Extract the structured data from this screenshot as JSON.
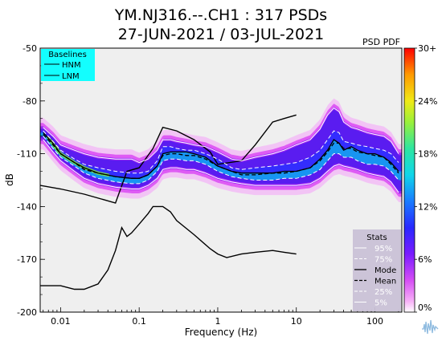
{
  "chart_data": {
    "type": "heatmap",
    "title": [
      "YM.NJ316.--.CH1 : 317 PSDs",
      "27-JUN-2021 / 03-JUL-2021"
    ],
    "xlabel": "Frequency (Hz)",
    "ylabel": "dB",
    "xscale": "log",
    "xlim": [
      0.0055,
      220
    ],
    "ylim": [
      -200,
      -50
    ],
    "xticks": [
      0.01,
      0.1,
      1,
      10,
      100
    ],
    "xtick_labels": [
      "0.01",
      "0.1",
      "1",
      "10",
      "100"
    ],
    "yticks": [
      -50,
      -80,
      -110,
      -140,
      -170,
      -200
    ],
    "ytick_labels": [
      "-50",
      "-80",
      "-110",
      "-140",
      "-170",
      "-200"
    ],
    "grid": false,
    "colorbar": {
      "title": "PSD PDF",
      "ticks": [
        "0%",
        "6%",
        "12%",
        "18%",
        "24%",
        "30+"
      ],
      "values": [
        0,
        6,
        12,
        18,
        24,
        30
      ]
    },
    "baselines": {
      "title": "Baselines",
      "placement": "top-left",
      "entries": [
        "HNM",
        "LNM"
      ],
      "series": [
        {
          "name": "HNM",
          "x": [
            0.0055,
            0.01,
            0.02,
            0.05,
            0.07,
            0.1,
            0.15,
            0.2,
            0.3,
            0.5,
            0.8,
            1,
            2,
            3,
            5,
            7,
            10
          ],
          "y": [
            -128,
            -130,
            -133,
            -138,
            -120,
            -118,
            -107,
            -95,
            -97,
            -102,
            -109,
            -116,
            -114,
            -105,
            -92,
            -90,
            -88
          ]
        },
        {
          "name": "LNM",
          "x": [
            0.0055,
            0.01,
            0.015,
            0.02,
            0.03,
            0.04,
            0.05,
            0.06,
            0.07,
            0.08,
            0.1,
            0.13,
            0.15,
            0.2,
            0.25,
            0.3,
            0.5,
            0.8,
            1,
            1.3,
            2,
            3,
            5,
            7,
            10
          ],
          "y": [
            -185,
            -185,
            -187,
            -187,
            -184,
            -176,
            -165,
            -152,
            -157,
            -155,
            -150,
            -144,
            -140,
            -140,
            -143,
            -148,
            -156,
            -164,
            -167,
            -169,
            -167,
            -166,
            -165,
            -166,
            -167
          ]
        }
      ]
    },
    "stats": {
      "title": "Stats",
      "placement": "bottom-right",
      "entries": [
        "95%",
        "75%",
        "Mode",
        "Mean",
        "25%",
        "5%"
      ],
      "series": [
        {
          "name": "95%",
          "x": [
            0.006,
            0.008,
            0.01,
            0.015,
            0.02,
            0.03,
            0.05,
            0.08,
            0.1,
            0.13,
            0.17,
            0.2,
            0.25,
            0.3,
            0.4,
            0.5,
            0.7,
            1,
            1.5,
            2,
            3,
            5,
            7,
            10,
            15,
            20,
            25,
            30,
            35,
            40,
            50,
            60,
            80,
            100,
            130,
            160,
            200
          ],
          "y": [
            -95,
            -100,
            -105,
            -108,
            -110,
            -112,
            -113,
            -113,
            -115,
            -113,
            -108,
            -102,
            -102,
            -103,
            -104,
            -105,
            -106,
            -109,
            -113,
            -114,
            -112,
            -110,
            -108,
            -105,
            -102,
            -96,
            -88,
            -84,
            -86,
            -92,
            -95,
            -96,
            -98,
            -99,
            -100,
            -103,
            -110
          ]
        },
        {
          "name": "75%",
          "x": [
            0.006,
            0.008,
            0.01,
            0.015,
            0.02,
            0.03,
            0.05,
            0.08,
            0.1,
            0.13,
            0.17,
            0.2,
            0.25,
            0.3,
            0.4,
            0.5,
            0.7,
            1,
            1.5,
            2,
            3,
            5,
            7,
            10,
            15,
            20,
            25,
            30,
            35,
            40,
            50,
            60,
            80,
            100,
            130,
            160,
            200
          ],
          "y": [
            -97,
            -103,
            -108,
            -113,
            -116,
            -118,
            -120,
            -121,
            -121,
            -120,
            -114,
            -106,
            -106,
            -107,
            -108,
            -108,
            -110,
            -113,
            -118,
            -119,
            -118,
            -117,
            -116,
            -115,
            -112,
            -108,
            -102,
            -97,
            -98,
            -103,
            -104,
            -105,
            -106,
            -107,
            -108,
            -110,
            -115
          ]
        },
        {
          "name": "Mode",
          "x": [
            0.006,
            0.008,
            0.01,
            0.015,
            0.02,
            0.03,
            0.05,
            0.08,
            0.1,
            0.13,
            0.17,
            0.2,
            0.25,
            0.3,
            0.4,
            0.5,
            0.7,
            1,
            1.5,
            2,
            3,
            5,
            7,
            10,
            15,
            20,
            25,
            30,
            35,
            40,
            50,
            60,
            80,
            100,
            130,
            160,
            200
          ],
          "y": [
            -98,
            -104,
            -110,
            -115,
            -118,
            -121,
            -123,
            -124,
            -124,
            -122,
            -117,
            -110,
            -109,
            -109,
            -109,
            -110,
            -112,
            -117,
            -120,
            -121,
            -121,
            -121,
            -120,
            -120,
            -118,
            -113,
            -108,
            -102,
            -104,
            -108,
            -106,
            -108,
            -110,
            -110,
            -112,
            -115,
            -120
          ]
        },
        {
          "name": "Mean",
          "x": [
            0.006,
            0.008,
            0.01,
            0.015,
            0.02,
            0.03,
            0.05,
            0.08,
            0.1,
            0.13,
            0.17,
            0.2,
            0.25,
            0.3,
            0.4,
            0.5,
            0.7,
            1,
            1.5,
            2,
            3,
            5,
            7,
            10,
            15,
            20,
            25,
            30,
            35,
            40,
            50,
            60,
            80,
            100,
            130,
            160,
            200
          ],
          "y": [
            -99,
            -105,
            -110,
            -115,
            -119,
            -121,
            -123,
            -124,
            -124,
            -122,
            -117,
            -111,
            -110,
            -110,
            -111,
            -111,
            -113,
            -117,
            -120,
            -122,
            -122,
            -121,
            -121,
            -120,
            -118,
            -114,
            -109,
            -104,
            -104,
            -107,
            -107,
            -109,
            -110,
            -111,
            -112,
            -116,
            -121
          ]
        },
        {
          "name": "25%",
          "x": [
            0.006,
            0.008,
            0.01,
            0.015,
            0.02,
            0.03,
            0.05,
            0.08,
            0.1,
            0.13,
            0.17,
            0.2,
            0.25,
            0.3,
            0.4,
            0.5,
            0.7,
            1,
            1.5,
            2,
            3,
            5,
            7,
            10,
            15,
            20,
            25,
            30,
            35,
            40,
            50,
            60,
            80,
            100,
            130,
            160,
            200
          ],
          "y": [
            -100,
            -107,
            -112,
            -117,
            -121,
            -124,
            -126,
            -127,
            -127,
            -125,
            -120,
            -114,
            -113,
            -113,
            -114,
            -114,
            -116,
            -120,
            -123,
            -124,
            -125,
            -125,
            -124,
            -124,
            -122,
            -119,
            -114,
            -110,
            -110,
            -112,
            -112,
            -114,
            -116,
            -116,
            -117,
            -120,
            -125
          ]
        },
        {
          "name": "5%",
          "x": [
            0.006,
            0.008,
            0.01,
            0.015,
            0.02,
            0.03,
            0.05,
            0.08,
            0.1,
            0.13,
            0.17,
            0.2,
            0.25,
            0.3,
            0.4,
            0.5,
            0.7,
            1,
            1.5,
            2,
            3,
            5,
            7,
            10,
            15,
            20,
            25,
            30,
            35,
            40,
            50,
            60,
            80,
            100,
            130,
            160,
            200
          ],
          "y": [
            -102,
            -109,
            -114,
            -120,
            -124,
            -127,
            -129,
            -130,
            -130,
            -128,
            -124,
            -119,
            -118,
            -118,
            -119,
            -119,
            -121,
            -124,
            -126,
            -127,
            -128,
            -128,
            -128,
            -128,
            -127,
            -124,
            -120,
            -117,
            -116,
            -117,
            -118,
            -119,
            -121,
            -122,
            -123,
            -126,
            -132
          ]
        }
      ]
    }
  }
}
